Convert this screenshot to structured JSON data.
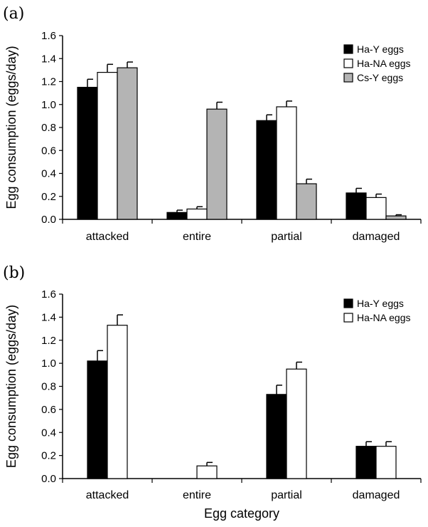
{
  "chart_data": [
    {
      "type": "bar",
      "panel_label": "(a)",
      "categories": [
        "attacked",
        "entire",
        "partial",
        "damaged"
      ],
      "series": [
        {
          "name": "Ha-Y eggs",
          "color": "#000000",
          "values": [
            1.15,
            0.06,
            0.86,
            0.23
          ],
          "errors": [
            0.07,
            0.02,
            0.05,
            0.04
          ]
        },
        {
          "name": "Ha-NA eggs",
          "color": "#ffffff",
          "values": [
            1.28,
            0.09,
            0.98,
            0.19
          ],
          "errors": [
            0.07,
            0.02,
            0.05,
            0.03
          ]
        },
        {
          "name": "Cs-Y eggs",
          "color": "#b4b4b4",
          "values": [
            1.32,
            0.96,
            0.31,
            0.03
          ],
          "errors": [
            0.05,
            0.06,
            0.04,
            0.01
          ]
        }
      ],
      "ylabel": "Egg consumption (eggs/day)",
      "xlabel": "",
      "ylim": [
        0,
        1.6
      ],
      "yticks": [
        "0.0",
        "0.2",
        "0.4",
        "0.6",
        "0.8",
        "1.0",
        "1.2",
        "1.4",
        "1.6"
      ],
      "legend_position": "top-right",
      "grid": false
    },
    {
      "type": "bar",
      "panel_label": "(b)",
      "categories": [
        "attacked",
        "entire",
        "partial",
        "damaged"
      ],
      "series": [
        {
          "name": "Ha-Y eggs",
          "color": "#000000",
          "values": [
            1.02,
            0.0,
            0.73,
            0.28
          ],
          "errors": [
            0.09,
            0.0,
            0.08,
            0.04
          ]
        },
        {
          "name": "Ha-NA eggs",
          "color": "#ffffff",
          "values": [
            1.33,
            0.11,
            0.95,
            0.28
          ],
          "errors": [
            0.09,
            0.03,
            0.06,
            0.04
          ]
        }
      ],
      "ylabel": "Egg consumption (eggs/day)",
      "xlabel": "Egg category",
      "ylim": [
        0,
        1.6
      ],
      "yticks": [
        "0.0",
        "0.2",
        "0.4",
        "0.6",
        "0.8",
        "1.0",
        "1.2",
        "1.4",
        "1.6"
      ],
      "legend_position": "top-right",
      "grid": false
    }
  ]
}
